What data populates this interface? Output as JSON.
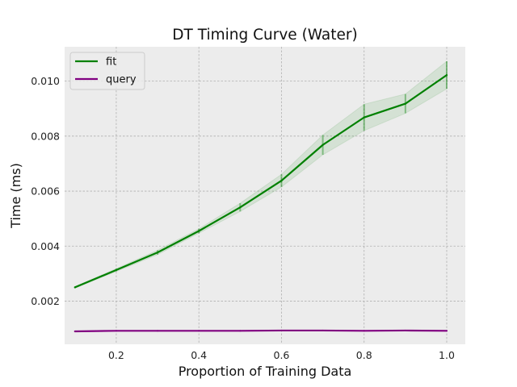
{
  "chart_data": {
    "type": "line",
    "title": "DT Timing Curve (Water)",
    "xlabel": "Proportion of Training Data",
    "ylabel": "Time (ms)",
    "xlim": [
      0.075,
      1.045
    ],
    "ylim": [
      0.00043,
      0.01125
    ],
    "xticks": [
      0.2,
      0.4,
      0.6,
      0.8,
      1.0
    ],
    "xtick_labels": [
      "0.2",
      "0.4",
      "0.6",
      "0.8",
      "1.0"
    ],
    "yticks": [
      0.002,
      0.004,
      0.006,
      0.008,
      0.01
    ],
    "ytick_labels": [
      "0.002",
      "0.004",
      "0.006",
      "0.008",
      "0.010"
    ],
    "grid": true,
    "legend_position": "top-left",
    "x": [
      0.1,
      0.2,
      0.3,
      0.4,
      0.5,
      0.6,
      0.7,
      0.8,
      0.9,
      1.0
    ],
    "series": [
      {
        "name": "fit",
        "color": "#008000",
        "values": [
          0.0025,
          0.00313,
          0.00377,
          0.00455,
          0.00541,
          0.00638,
          0.00768,
          0.00868,
          0.00918,
          0.01022
        ],
        "std": [
          3e-05,
          5e-05,
          8e-05,
          8e-05,
          0.00015,
          0.00023,
          0.00036,
          0.00048,
          0.00035,
          0.0005
        ]
      },
      {
        "name": "query",
        "color": "#800080",
        "values": [
          0.0009,
          0.00092,
          0.00092,
          0.00092,
          0.00092,
          0.00093,
          0.00093,
          0.00092,
          0.00093,
          0.00092
        ],
        "std": [
          1e-05,
          1e-05,
          1e-05,
          1e-05,
          1e-05,
          1e-05,
          1e-05,
          1e-05,
          1e-05,
          1e-05
        ]
      }
    ]
  }
}
